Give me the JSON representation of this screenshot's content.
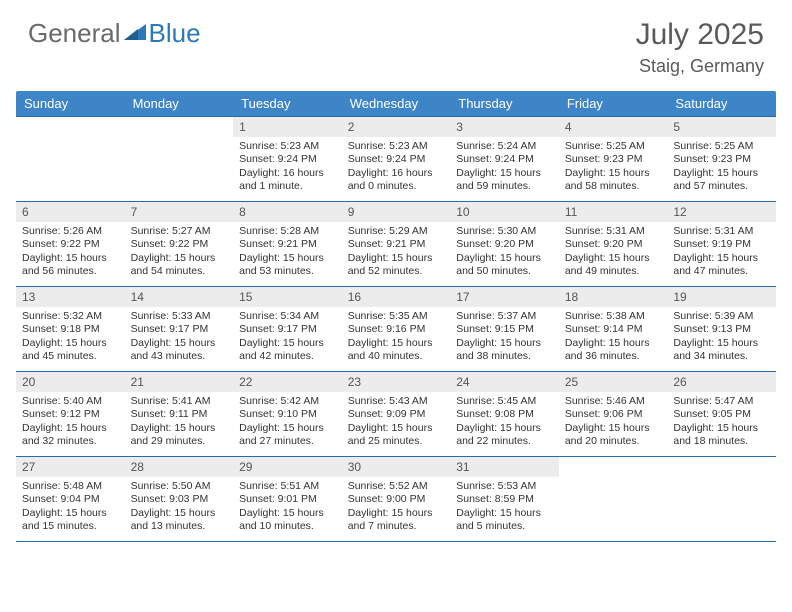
{
  "brand": {
    "general": "General",
    "blue": "Blue"
  },
  "title": "July 2025",
  "location": "Staig, Germany",
  "colors": {
    "header_bg": "#3d85c6",
    "rule": "#2a6aa8",
    "date_bg": "#ececec",
    "text": "#333333",
    "brand_grey": "#6a6a6a",
    "brand_blue": "#2a7ab8"
  },
  "dayNames": [
    "Sunday",
    "Monday",
    "Tuesday",
    "Wednesday",
    "Thursday",
    "Friday",
    "Saturday"
  ],
  "weeks": [
    [
      {
        "n": "",
        "sr": "",
        "ss": "",
        "dl": ""
      },
      {
        "n": "",
        "sr": "",
        "ss": "",
        "dl": ""
      },
      {
        "n": "1",
        "sr": "Sunrise: 5:23 AM",
        "ss": "Sunset: 9:24 PM",
        "dl": "Daylight: 16 hours and 1 minute."
      },
      {
        "n": "2",
        "sr": "Sunrise: 5:23 AM",
        "ss": "Sunset: 9:24 PM",
        "dl": "Daylight: 16 hours and 0 minutes."
      },
      {
        "n": "3",
        "sr": "Sunrise: 5:24 AM",
        "ss": "Sunset: 9:24 PM",
        "dl": "Daylight: 15 hours and 59 minutes."
      },
      {
        "n": "4",
        "sr": "Sunrise: 5:25 AM",
        "ss": "Sunset: 9:23 PM",
        "dl": "Daylight: 15 hours and 58 minutes."
      },
      {
        "n": "5",
        "sr": "Sunrise: 5:25 AM",
        "ss": "Sunset: 9:23 PM",
        "dl": "Daylight: 15 hours and 57 minutes."
      }
    ],
    [
      {
        "n": "6",
        "sr": "Sunrise: 5:26 AM",
        "ss": "Sunset: 9:22 PM",
        "dl": "Daylight: 15 hours and 56 minutes."
      },
      {
        "n": "7",
        "sr": "Sunrise: 5:27 AM",
        "ss": "Sunset: 9:22 PM",
        "dl": "Daylight: 15 hours and 54 minutes."
      },
      {
        "n": "8",
        "sr": "Sunrise: 5:28 AM",
        "ss": "Sunset: 9:21 PM",
        "dl": "Daylight: 15 hours and 53 minutes."
      },
      {
        "n": "9",
        "sr": "Sunrise: 5:29 AM",
        "ss": "Sunset: 9:21 PM",
        "dl": "Daylight: 15 hours and 52 minutes."
      },
      {
        "n": "10",
        "sr": "Sunrise: 5:30 AM",
        "ss": "Sunset: 9:20 PM",
        "dl": "Daylight: 15 hours and 50 minutes."
      },
      {
        "n": "11",
        "sr": "Sunrise: 5:31 AM",
        "ss": "Sunset: 9:20 PM",
        "dl": "Daylight: 15 hours and 49 minutes."
      },
      {
        "n": "12",
        "sr": "Sunrise: 5:31 AM",
        "ss": "Sunset: 9:19 PM",
        "dl": "Daylight: 15 hours and 47 minutes."
      }
    ],
    [
      {
        "n": "13",
        "sr": "Sunrise: 5:32 AM",
        "ss": "Sunset: 9:18 PM",
        "dl": "Daylight: 15 hours and 45 minutes."
      },
      {
        "n": "14",
        "sr": "Sunrise: 5:33 AM",
        "ss": "Sunset: 9:17 PM",
        "dl": "Daylight: 15 hours and 43 minutes."
      },
      {
        "n": "15",
        "sr": "Sunrise: 5:34 AM",
        "ss": "Sunset: 9:17 PM",
        "dl": "Daylight: 15 hours and 42 minutes."
      },
      {
        "n": "16",
        "sr": "Sunrise: 5:35 AM",
        "ss": "Sunset: 9:16 PM",
        "dl": "Daylight: 15 hours and 40 minutes."
      },
      {
        "n": "17",
        "sr": "Sunrise: 5:37 AM",
        "ss": "Sunset: 9:15 PM",
        "dl": "Daylight: 15 hours and 38 minutes."
      },
      {
        "n": "18",
        "sr": "Sunrise: 5:38 AM",
        "ss": "Sunset: 9:14 PM",
        "dl": "Daylight: 15 hours and 36 minutes."
      },
      {
        "n": "19",
        "sr": "Sunrise: 5:39 AM",
        "ss": "Sunset: 9:13 PM",
        "dl": "Daylight: 15 hours and 34 minutes."
      }
    ],
    [
      {
        "n": "20",
        "sr": "Sunrise: 5:40 AM",
        "ss": "Sunset: 9:12 PM",
        "dl": "Daylight: 15 hours and 32 minutes."
      },
      {
        "n": "21",
        "sr": "Sunrise: 5:41 AM",
        "ss": "Sunset: 9:11 PM",
        "dl": "Daylight: 15 hours and 29 minutes."
      },
      {
        "n": "22",
        "sr": "Sunrise: 5:42 AM",
        "ss": "Sunset: 9:10 PM",
        "dl": "Daylight: 15 hours and 27 minutes."
      },
      {
        "n": "23",
        "sr": "Sunrise: 5:43 AM",
        "ss": "Sunset: 9:09 PM",
        "dl": "Daylight: 15 hours and 25 minutes."
      },
      {
        "n": "24",
        "sr": "Sunrise: 5:45 AM",
        "ss": "Sunset: 9:08 PM",
        "dl": "Daylight: 15 hours and 22 minutes."
      },
      {
        "n": "25",
        "sr": "Sunrise: 5:46 AM",
        "ss": "Sunset: 9:06 PM",
        "dl": "Daylight: 15 hours and 20 minutes."
      },
      {
        "n": "26",
        "sr": "Sunrise: 5:47 AM",
        "ss": "Sunset: 9:05 PM",
        "dl": "Daylight: 15 hours and 18 minutes."
      }
    ],
    [
      {
        "n": "27",
        "sr": "Sunrise: 5:48 AM",
        "ss": "Sunset: 9:04 PM",
        "dl": "Daylight: 15 hours and 15 minutes."
      },
      {
        "n": "28",
        "sr": "Sunrise: 5:50 AM",
        "ss": "Sunset: 9:03 PM",
        "dl": "Daylight: 15 hours and 13 minutes."
      },
      {
        "n": "29",
        "sr": "Sunrise: 5:51 AM",
        "ss": "Sunset: 9:01 PM",
        "dl": "Daylight: 15 hours and 10 minutes."
      },
      {
        "n": "30",
        "sr": "Sunrise: 5:52 AM",
        "ss": "Sunset: 9:00 PM",
        "dl": "Daylight: 15 hours and 7 minutes."
      },
      {
        "n": "31",
        "sr": "Sunrise: 5:53 AM",
        "ss": "Sunset: 8:59 PM",
        "dl": "Daylight: 15 hours and 5 minutes."
      },
      {
        "n": "",
        "sr": "",
        "ss": "",
        "dl": ""
      },
      {
        "n": "",
        "sr": "",
        "ss": "",
        "dl": ""
      }
    ]
  ]
}
